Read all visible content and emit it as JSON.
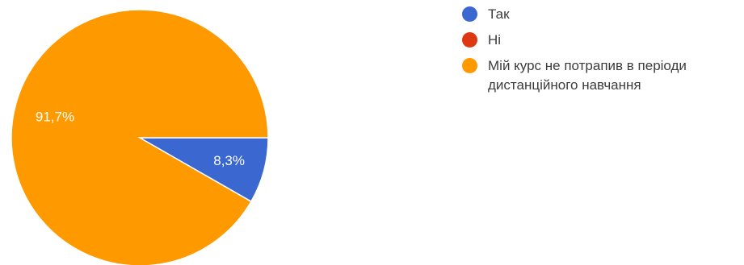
{
  "chart_data": {
    "type": "pie",
    "slices": [
      {
        "label": "Так",
        "value": 8.3,
        "display": "8,3%",
        "color": "#3a67d0"
      },
      {
        "label": "Ні",
        "value": 0,
        "display": "",
        "color": "#dc3912"
      },
      {
        "label": "Мій курс не потрапив в періоди дистанційного навчання",
        "value": 91.7,
        "display": "91,7%",
        "color": "#ff9900"
      }
    ],
    "legend": {
      "placement": "right",
      "entries": [
        "Так",
        "Ні",
        "Мій курс не потрапив в періоди дистанційного навчання"
      ]
    }
  }
}
